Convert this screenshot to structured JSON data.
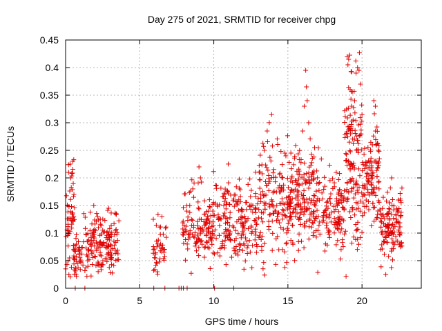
{
  "chart_data": {
    "type": "scatter",
    "title": "Day 275 of 2021, SRMTID for receiver chpg",
    "xlabel": "GPS time / hours",
    "ylabel": "SRMTID / TECUs",
    "xlim": [
      0,
      24
    ],
    "ylim": [
      0,
      0.45
    ],
    "x_ticks": [
      0,
      5,
      10,
      15,
      20
    ],
    "x_tick_labels": [
      "0",
      "5",
      "10",
      "15",
      "20"
    ],
    "y_ticks": [
      0,
      0.05,
      0.1,
      0.15,
      0.2,
      0.25,
      0.3,
      0.35,
      0.4,
      0.45
    ],
    "y_tick_labels": [
      "0",
      "0.05",
      "0.1",
      "0.15",
      "0.2",
      "0.25",
      "0.3",
      "0.35",
      "0.4",
      "0.45"
    ],
    "grid": true,
    "marker": "+",
    "color": "#e00000",
    "zero_points_x": [
      0.65,
      1.3,
      5.95,
      6.7,
      7.65,
      7.8,
      7.95,
      8.2,
      10.05,
      11.35
    ],
    "segments": [
      {
        "t0": 0.0,
        "t1": 0.5,
        "base": 0.12,
        "amp": 0.05,
        "n": 40
      },
      {
        "t0": 0.4,
        "t1": 0.6,
        "base": 0.17,
        "amp": 0.04,
        "n": 14
      },
      {
        "t0": 0.5,
        "t1": 1.2,
        "base": 0.06,
        "amp": 0.02,
        "n": 45
      },
      {
        "t0": 1.2,
        "t1": 3.6,
        "base": 0.08,
        "amp": 0.03,
        "n": 170
      },
      {
        "t0": 5.9,
        "t1": 6.8,
        "base": 0.07,
        "amp": 0.025,
        "n": 45
      },
      {
        "t0": 7.9,
        "t1": 10.5,
        "base": 0.11,
        "amp": 0.035,
        "n": 160
      },
      {
        "t0": 10.5,
        "t1": 13.0,
        "base": 0.12,
        "amp": 0.035,
        "n": 170
      },
      {
        "t0": 13.0,
        "t1": 15.5,
        "base": 0.16,
        "amp": 0.045,
        "n": 190
      },
      {
        "t0": 15.5,
        "t1": 17.3,
        "base": 0.17,
        "amp": 0.05,
        "n": 150
      },
      {
        "t0": 17.3,
        "t1": 18.8,
        "base": 0.14,
        "amp": 0.035,
        "n": 110
      },
      {
        "t0": 18.8,
        "t1": 20.0,
        "base": 0.23,
        "amp": 0.07,
        "n": 140
      },
      {
        "t0": 20.0,
        "t1": 21.2,
        "base": 0.2,
        "amp": 0.05,
        "n": 110
      },
      {
        "t0": 21.2,
        "t1": 22.7,
        "base": 0.11,
        "amp": 0.03,
        "n": 130
      }
    ],
    "peaks": [
      {
        "x": 0.2,
        "y": 0.21
      },
      {
        "x": 0.35,
        "y": 0.2
      },
      {
        "x": 0.3,
        "y": 0.225
      },
      {
        "x": 1.9,
        "y": 0.15
      },
      {
        "x": 2.9,
        "y": 0.145
      },
      {
        "x": 6.5,
        "y": 0.13
      },
      {
        "x": 9.0,
        "y": 0.22
      },
      {
        "x": 9.1,
        "y": 0.2
      },
      {
        "x": 13.4,
        "y": 0.25
      },
      {
        "x": 13.6,
        "y": 0.285
      },
      {
        "x": 13.9,
        "y": 0.315
      },
      {
        "x": 14.8,
        "y": 0.245
      },
      {
        "x": 15.2,
        "y": 0.245
      },
      {
        "x": 16.0,
        "y": 0.285
      },
      {
        "x": 16.1,
        "y": 0.33
      },
      {
        "x": 16.2,
        "y": 0.395
      },
      {
        "x": 16.25,
        "y": 0.365
      },
      {
        "x": 16.3,
        "y": 0.34
      },
      {
        "x": 16.4,
        "y": 0.3
      },
      {
        "x": 16.8,
        "y": 0.255
      },
      {
        "x": 19.0,
        "y": 0.42
      },
      {
        "x": 19.05,
        "y": 0.405
      },
      {
        "x": 19.1,
        "y": 0.415
      },
      {
        "x": 19.2,
        "y": 0.36
      },
      {
        "x": 19.3,
        "y": 0.33
      },
      {
        "x": 19.6,
        "y": 0.39
      },
      {
        "x": 19.7,
        "y": 0.4
      },
      {
        "x": 19.8,
        "y": 0.395
      },
      {
        "x": 19.9,
        "y": 0.37
      },
      {
        "x": 19.5,
        "y": 0.34
      },
      {
        "x": 19.4,
        "y": 0.305
      },
      {
        "x": 20.8,
        "y": 0.34
      },
      {
        "x": 20.9,
        "y": 0.33
      },
      {
        "x": 20.7,
        "y": 0.26
      },
      {
        "x": 21.1,
        "y": 0.25
      },
      {
        "x": 22.0,
        "y": 0.2
      }
    ]
  }
}
